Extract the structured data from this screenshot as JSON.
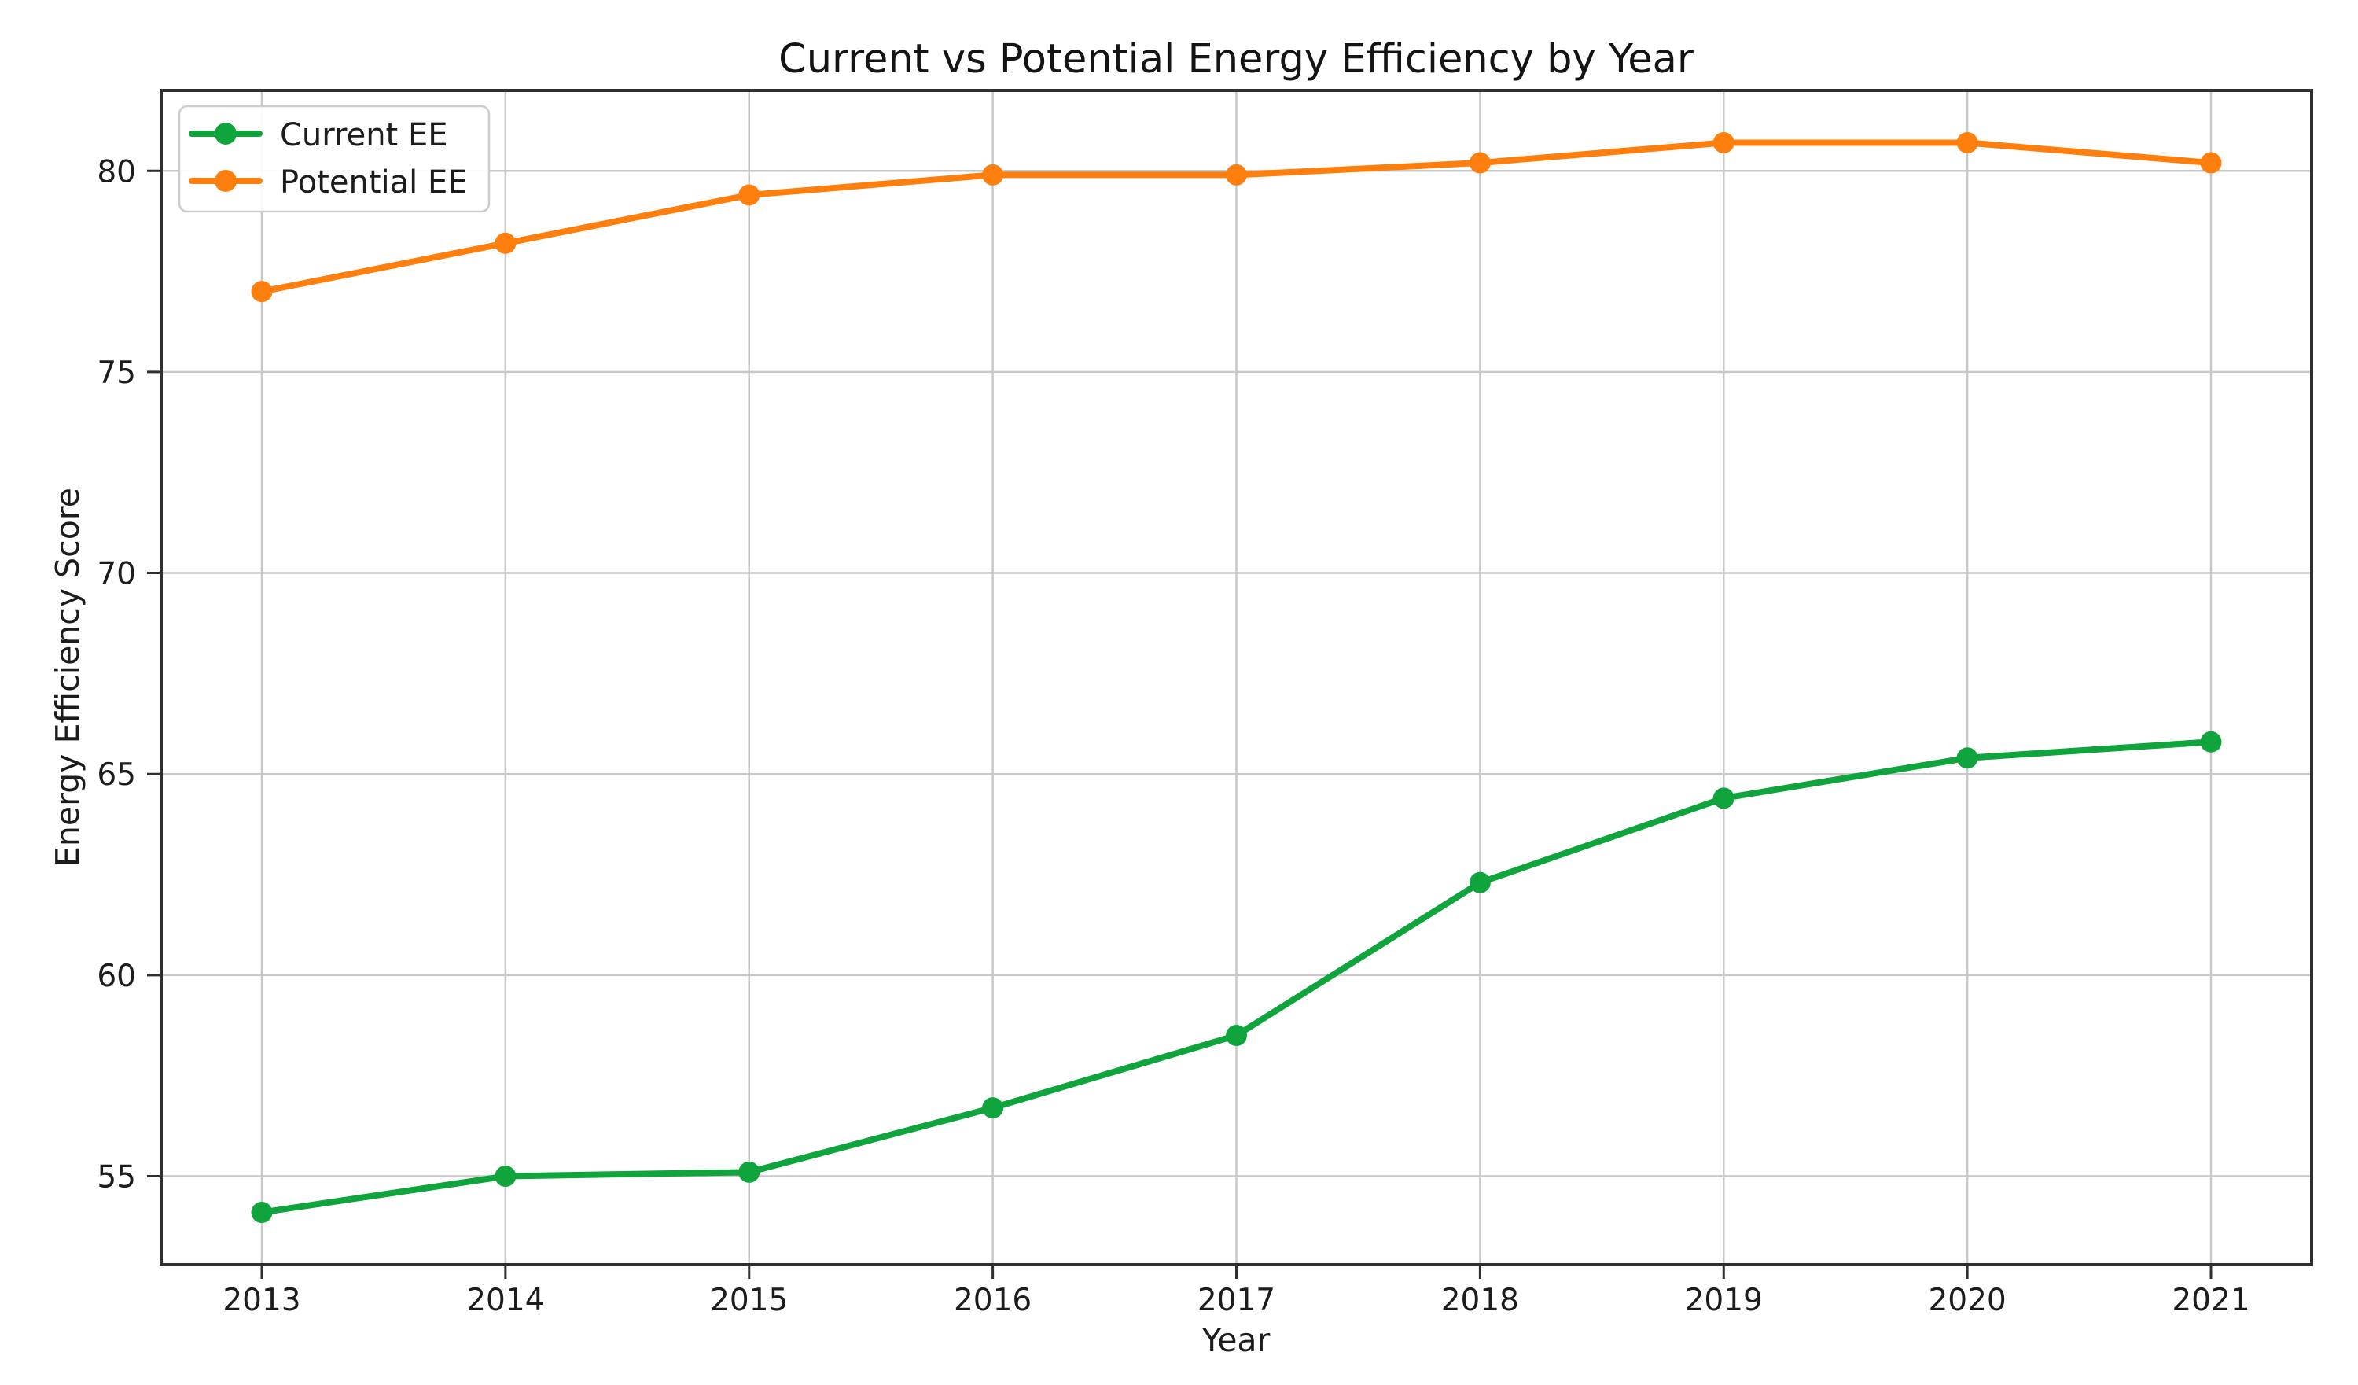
{
  "chart_data": {
    "type": "line",
    "title": "Current vs Potential Energy Efficiency by Year",
    "xlabel": "Year",
    "ylabel": "Energy Efficiency Score",
    "categories": [
      "2013",
      "2014",
      "2015",
      "2016",
      "2017",
      "2018",
      "2019",
      "2020",
      "2021"
    ],
    "series": [
      {
        "name": "Current EE",
        "color": "#0fa43c",
        "marker": "circle",
        "values": [
          54.1,
          55.0,
          55.1,
          56.7,
          58.5,
          62.3,
          64.4,
          65.4,
          65.8
        ]
      },
      {
        "name": "Potential EE",
        "color": "#ff7f0e",
        "marker": "circle",
        "values": [
          77.0,
          78.2,
          79.4,
          79.9,
          79.9,
          80.2,
          80.7,
          80.7,
          80.2
        ]
      }
    ],
    "ylim": [
      52.8,
      82.0
    ],
    "yticks": [
      55,
      60,
      65,
      70,
      75,
      80
    ],
    "xticks": [
      "2013",
      "2014",
      "2015",
      "2016",
      "2017",
      "2018",
      "2019",
      "2020",
      "2021"
    ],
    "grid": true,
    "legend_position": "upper left",
    "colors": {
      "grid": "#c8c8c8",
      "spine": "#2f2f2f",
      "text": "#1c1c1c",
      "background": "#ffffff"
    }
  }
}
